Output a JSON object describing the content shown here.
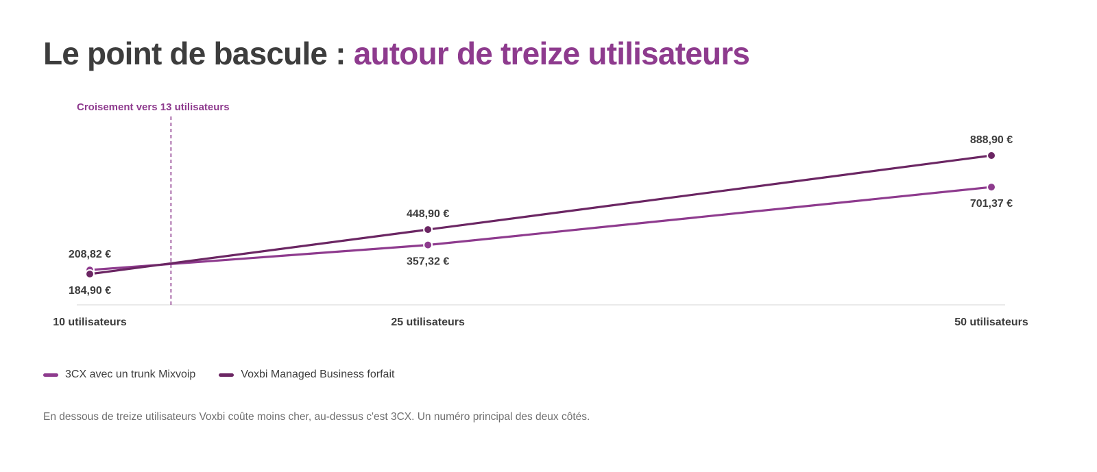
{
  "title": {
    "lead": "Le point de bascule :",
    "accent": "autour de treize utilisateurs"
  },
  "colors": {
    "series_3cx": "#8e3b8e",
    "series_voxbi": "#6b2663",
    "axis": "#e4e4e4",
    "text_dark": "#3d3d3d",
    "annotation": "#8e3b8e"
  },
  "chart_data": {
    "type": "line",
    "x": [
      10,
      25,
      50
    ],
    "categories": [
      "10 utilisateurs",
      "25 utilisateurs",
      "50 utilisateurs"
    ],
    "series": [
      {
        "name": "3CX avec un trunk Mixvoip",
        "values": [
          208.82,
          357.32,
          701.37
        ],
        "labels": [
          "208,82 €",
          "357,32 €",
          "701,37 €"
        ],
        "label_positions": [
          "above",
          "below",
          "below"
        ]
      },
      {
        "name": "Voxbi Managed Business forfait",
        "values": [
          184.9,
          448.9,
          888.9
        ],
        "labels": [
          "184,90 €",
          "448,90 €",
          "888,90 €"
        ],
        "label_positions": [
          "below",
          "above",
          "above"
        ]
      }
    ],
    "annotation": {
      "x": 13.6,
      "label": "Croisement vers 13 utilisateurs"
    },
    "ylim": [
      0,
      1000
    ],
    "grid": false,
    "legend": "bottom-left"
  },
  "note": "En dessous de treize utilisateurs Voxbi coûte moins cher, au-dessus c'est 3CX. Un numéro principal des deux côtés."
}
